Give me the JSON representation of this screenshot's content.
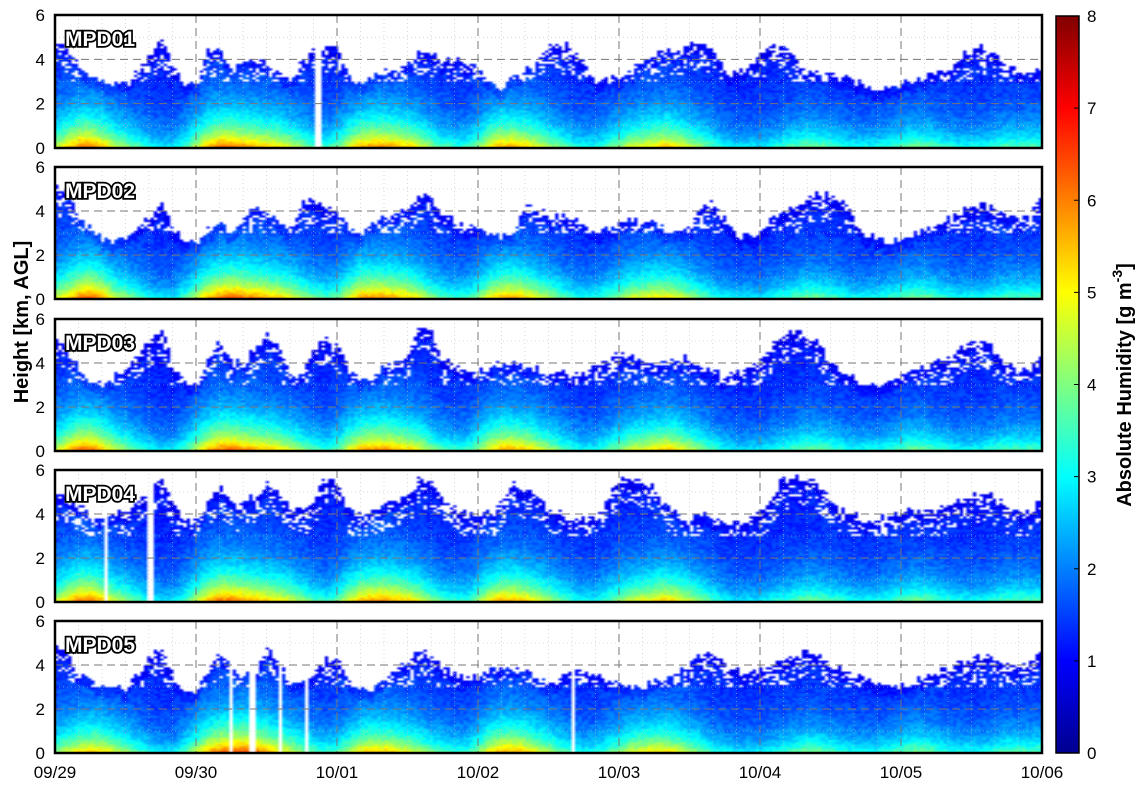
{
  "chart_data": {
    "type": "heatmap",
    "title": "",
    "ylabel": "Height [km, AGL]",
    "xlabel": "",
    "x_ticks": [
      "09/29",
      "09/30",
      "10/01",
      "10/02",
      "10/03",
      "10/04",
      "10/05",
      "10/06"
    ],
    "y_ticks": [
      "0",
      "2",
      "4",
      "6"
    ],
    "ylim": [
      0,
      6
    ],
    "grid": true,
    "colorbar": {
      "label_main": "Absolute Humidity [g m",
      "label_exp": "-3",
      "label_close": "]",
      "ticks": [
        "0",
        "1",
        "2",
        "3",
        "4",
        "5",
        "6",
        "7",
        "8"
      ],
      "range": [
        0,
        8
      ],
      "colormap": "jet"
    },
    "series": [
      {
        "name": "MPD01",
        "ylim": [
          0,
          6
        ],
        "top": [
          4.8,
          4.5,
          3.6,
          3.3,
          3.0,
          2.8,
          2.9,
          3.5,
          4.2,
          5.0,
          3.6,
          2.8,
          2.9,
          4.5,
          4.3,
          3.5,
          4.0,
          3.9,
          3.8,
          3.4,
          3.0,
          4.0,
          4.4,
          4.6,
          4.5,
          3.3,
          2.8,
          3.2,
          3.6,
          3.5,
          3.8,
          4.3,
          4.2,
          3.9,
          4.0,
          3.7,
          3.8,
          3.0,
          2.7,
          3.3,
          3.6,
          3.9,
          4.7,
          4.7,
          4.5,
          4.0,
          3.0,
          3.0,
          3.2,
          3.5,
          3.9,
          4.2,
          4.4,
          4.3,
          4.6,
          4.6,
          4.5,
          3.5,
          3.3,
          3.8,
          4.3,
          4.6,
          4.5,
          4.1,
          3.4,
          3.5,
          3.4,
          3.2,
          3.0,
          2.8,
          2.7,
          2.8,
          2.9,
          3.0,
          3.2,
          3.4,
          3.6,
          4.0,
          4.5,
          4.5,
          4.2,
          3.8,
          3.5,
          3.4,
          3.6
        ],
        "moist": [
          1.2,
          1.5,
          1.8,
          1.8,
          1.5,
          1.2,
          1.0,
          0.8,
          0.6,
          0.5,
          0.5,
          0.8,
          1.2,
          1.6,
          1.8,
          1.8,
          1.7,
          1.6,
          1.5,
          1.4,
          1.2,
          1.0,
          0.8,
          0.7,
          0.9,
          1.3,
          1.6,
          1.7,
          1.7,
          1.6,
          1.5,
          1.3,
          1.0,
          0.8,
          0.7,
          0.7,
          1.0,
          1.4,
          1.6,
          1.6,
          1.5,
          1.3,
          1.1,
          0.9,
          0.7,
          0.6,
          0.6,
          0.8,
          1.0,
          1.2,
          1.3,
          1.4,
          1.5,
          1.4,
          1.2,
          1.0,
          0.8,
          0.6,
          0.5,
          0.5,
          0.5,
          0.6,
          0.7,
          0.8,
          0.9,
          0.9,
          0.8,
          0.7,
          0.6,
          0.6,
          0.6,
          0.7,
          0.8,
          0.9,
          0.9,
          0.8,
          0.7,
          0.6,
          0.6,
          0.6,
          0.7,
          0.8,
          0.8,
          0.8,
          0.8
        ],
        "gaps": [
          [
            0.262,
            0.268
          ]
        ]
      },
      {
        "name": "MPD02",
        "ylim": [
          0,
          6
        ],
        "top": [
          5.0,
          4.8,
          3.6,
          3.2,
          2.7,
          2.6,
          2.8,
          3.4,
          3.8,
          4.5,
          3.0,
          2.7,
          2.6,
          3.2,
          3.4,
          3.0,
          3.6,
          4.2,
          4.0,
          3.4,
          3.2,
          4.4,
          4.5,
          4.2,
          4.0,
          3.3,
          3.0,
          3.4,
          3.8,
          3.9,
          4.2,
          4.8,
          4.5,
          3.9,
          3.5,
          3.3,
          3.3,
          3.0,
          2.8,
          3.0,
          4.2,
          4.0,
          3.8,
          3.8,
          3.6,
          3.4,
          3.0,
          3.2,
          3.4,
          3.8,
          3.6,
          3.4,
          3.2,
          3.0,
          3.2,
          4.0,
          4.4,
          3.6,
          3.0,
          2.8,
          3.0,
          3.6,
          4.0,
          4.2,
          4.6,
          4.8,
          4.7,
          4.5,
          3.8,
          3.0,
          2.7,
          2.6,
          2.7,
          2.9,
          3.1,
          3.4,
          3.6,
          3.9,
          4.2,
          4.3,
          4.1,
          3.8,
          3.6,
          3.8,
          4.5
        ],
        "moist": [
          1.2,
          1.5,
          1.8,
          1.9,
          1.6,
          1.2,
          1.0,
          0.8,
          0.6,
          0.5,
          0.5,
          0.8,
          1.2,
          1.6,
          1.8,
          1.9,
          1.8,
          1.7,
          1.6,
          1.5,
          1.3,
          1.1,
          0.9,
          0.8,
          0.9,
          1.3,
          1.7,
          1.7,
          1.7,
          1.6,
          1.5,
          1.3,
          1.0,
          0.8,
          0.7,
          0.7,
          1.0,
          1.4,
          1.6,
          1.6,
          1.5,
          1.3,
          1.1,
          0.9,
          0.7,
          0.6,
          0.6,
          0.8,
          1.0,
          1.2,
          1.3,
          1.4,
          1.4,
          1.3,
          1.1,
          0.9,
          0.7,
          0.6,
          0.5,
          0.5,
          0.5,
          0.6,
          0.7,
          0.8,
          0.9,
          0.9,
          0.8,
          0.7,
          0.6,
          0.6,
          0.6,
          0.7,
          0.8,
          0.9,
          0.9,
          0.8,
          0.7,
          0.6,
          0.6,
          0.6,
          0.7,
          0.8,
          0.8,
          0.8,
          0.8
        ],
        "gaps": []
      },
      {
        "name": "MPD03",
        "ylim": [
          0,
          6
        ],
        "top": [
          5.0,
          4.6,
          3.6,
          3.2,
          3.0,
          3.6,
          3.8,
          4.4,
          5.0,
          5.6,
          3.8,
          3.2,
          3.0,
          4.2,
          5.0,
          4.0,
          4.2,
          4.6,
          5.4,
          4.8,
          3.4,
          3.5,
          4.6,
          5.2,
          5.0,
          3.6,
          3.2,
          3.4,
          3.8,
          4.0,
          4.4,
          5.6,
          5.4,
          4.2,
          3.8,
          3.6,
          3.7,
          3.8,
          4.0,
          4.0,
          3.9,
          3.8,
          3.5,
          3.7,
          3.4,
          3.5,
          4.0,
          4.2,
          4.4,
          4.3,
          4.1,
          3.9,
          4.0,
          4.2,
          4.2,
          3.8,
          3.6,
          3.4,
          3.5,
          3.8,
          4.0,
          4.6,
          5.4,
          5.4,
          5.4,
          5.0,
          4.2,
          3.6,
          3.3,
          3.0,
          3.0,
          3.2,
          3.4,
          3.6,
          3.8,
          4.0,
          4.2,
          4.6,
          4.8,
          5.0,
          4.6,
          4.0,
          3.6,
          3.6,
          4.2
        ],
        "moist": [
          1.2,
          1.5,
          1.8,
          1.8,
          1.5,
          1.2,
          1.0,
          0.8,
          0.6,
          0.5,
          0.5,
          0.8,
          1.2,
          1.6,
          1.8,
          1.8,
          1.7,
          1.6,
          1.5,
          1.4,
          1.2,
          1.0,
          0.8,
          0.7,
          0.9,
          1.3,
          1.6,
          1.7,
          1.7,
          1.6,
          1.5,
          1.3,
          1.0,
          0.8,
          0.7,
          0.7,
          1.0,
          1.4,
          1.6,
          1.6,
          1.5,
          1.3,
          1.1,
          0.9,
          0.7,
          0.6,
          0.6,
          0.8,
          1.0,
          1.2,
          1.3,
          1.4,
          1.5,
          1.4,
          1.2,
          1.0,
          0.8,
          0.6,
          0.5,
          0.5,
          0.5,
          0.6,
          0.7,
          0.8,
          0.9,
          0.9,
          0.8,
          0.7,
          0.6,
          0.6,
          0.6,
          0.7,
          0.8,
          0.9,
          0.9,
          0.8,
          0.7,
          0.6,
          0.6,
          0.6,
          0.7,
          0.8,
          0.8,
          0.8,
          0.8
        ],
        "gaps": []
      },
      {
        "name": "MPD04",
        "ylim": [
          0,
          6
        ],
        "top": [
          5.0,
          4.8,
          4.4,
          4.0,
          3.8,
          4.0,
          4.2,
          4.6,
          5.2,
          5.6,
          4.4,
          3.8,
          3.6,
          4.6,
          5.2,
          4.4,
          4.6,
          4.8,
          5.4,
          5.0,
          4.2,
          4.2,
          4.8,
          5.6,
          5.4,
          4.2,
          4.0,
          4.2,
          4.4,
          4.6,
          4.8,
          5.6,
          5.4,
          4.8,
          4.2,
          4.0,
          4.0,
          4.0,
          4.6,
          5.4,
          5.0,
          4.8,
          4.2,
          4.0,
          3.8,
          3.8,
          3.8,
          4.6,
          5.6,
          5.6,
          5.6,
          5.2,
          4.4,
          4.0,
          3.8,
          4.0,
          3.8,
          3.6,
          3.6,
          3.8,
          4.0,
          4.8,
          5.6,
          5.6,
          5.6,
          5.4,
          4.6,
          4.2,
          4.0,
          3.8,
          3.8,
          3.9,
          4.0,
          4.1,
          4.2,
          4.2,
          4.4,
          4.6,
          4.8,
          5.0,
          4.8,
          4.4,
          4.2,
          4.2,
          4.6
        ],
        "moist": [
          1.2,
          1.5,
          1.8,
          1.8,
          1.5,
          1.2,
          1.0,
          0.8,
          0.6,
          0.5,
          0.5,
          0.8,
          1.2,
          1.6,
          1.8,
          1.8,
          1.7,
          1.6,
          1.5,
          1.4,
          1.2,
          1.0,
          0.8,
          0.7,
          0.9,
          1.3,
          1.6,
          1.7,
          1.7,
          1.6,
          1.5,
          1.3,
          1.0,
          0.8,
          0.7,
          0.7,
          1.0,
          1.4,
          1.6,
          1.6,
          1.5,
          1.3,
          1.1,
          0.9,
          0.7,
          0.6,
          0.6,
          0.8,
          1.0,
          1.2,
          1.3,
          1.4,
          1.5,
          1.4,
          1.2,
          1.0,
          0.8,
          0.6,
          0.5,
          0.5,
          0.5,
          0.6,
          0.7,
          0.8,
          0.9,
          0.9,
          0.8,
          0.7,
          0.6,
          0.6,
          0.6,
          0.7,
          0.8,
          0.9,
          0.9,
          0.8,
          0.7,
          0.6,
          0.6,
          0.6,
          0.7,
          0.8,
          0.8,
          0.8,
          0.8
        ],
        "gaps": [
          [
            0.047,
            0.052
          ],
          [
            0.093,
            0.097
          ]
        ]
      },
      {
        "name": "MPD05",
        "ylim": [
          0,
          6
        ],
        "top": [
          5.0,
          4.6,
          3.5,
          3.2,
          3.0,
          2.9,
          3.0,
          3.6,
          4.4,
          4.8,
          3.4,
          2.8,
          2.7,
          4.0,
          4.4,
          3.8,
          3.6,
          3.8,
          4.8,
          4.2,
          3.1,
          3.2,
          3.6,
          4.2,
          4.4,
          3.2,
          2.8,
          3.0,
          3.4,
          3.8,
          4.2,
          4.8,
          4.4,
          3.8,
          3.6,
          3.4,
          3.6,
          3.8,
          3.9,
          3.9,
          3.8,
          3.4,
          3.2,
          3.4,
          3.6,
          3.8,
          3.6,
          3.4,
          3.2,
          3.0,
          3.0,
          3.2,
          3.4,
          3.6,
          4.0,
          4.4,
          4.6,
          4.2,
          3.8,
          3.6,
          3.8,
          4.0,
          4.2,
          4.4,
          4.6,
          4.4,
          4.0,
          3.8,
          3.6,
          3.4,
          3.2,
          3.0,
          3.0,
          3.2,
          3.4,
          3.6,
          3.8,
          4.0,
          4.2,
          4.4,
          4.2,
          4.0,
          3.8,
          4.0,
          4.6
        ],
        "moist": [
          1.0,
          1.2,
          1.4,
          1.5,
          1.4,
          1.2,
          1.0,
          0.8,
          0.6,
          0.5,
          0.5,
          0.8,
          1.2,
          1.6,
          1.8,
          1.9,
          1.9,
          1.8,
          1.6,
          1.4,
          1.2,
          1.0,
          0.8,
          0.7,
          0.8,
          1.1,
          1.4,
          1.5,
          1.5,
          1.4,
          1.3,
          1.1,
          0.9,
          0.8,
          0.7,
          0.7,
          1.0,
          1.4,
          1.6,
          1.6,
          1.5,
          1.3,
          1.1,
          0.9,
          0.7,
          0.6,
          0.6,
          0.8,
          1.0,
          1.2,
          1.3,
          1.4,
          1.4,
          1.3,
          1.1,
          0.9,
          0.7,
          0.6,
          0.5,
          0.5,
          0.5,
          0.6,
          0.7,
          0.8,
          0.9,
          0.9,
          0.8,
          0.7,
          0.6,
          0.6,
          0.6,
          0.7,
          0.8,
          0.9,
          0.9,
          0.8,
          0.7,
          0.6,
          0.6,
          0.6,
          0.7,
          0.8,
          0.8,
          0.8,
          0.8
        ],
        "gaps": [
          [
            0.175,
            0.18
          ],
          [
            0.196,
            0.201
          ],
          [
            0.225,
            0.23
          ],
          [
            0.253,
            0.257
          ],
          [
            0.525,
            0.528
          ]
        ]
      }
    ]
  }
}
